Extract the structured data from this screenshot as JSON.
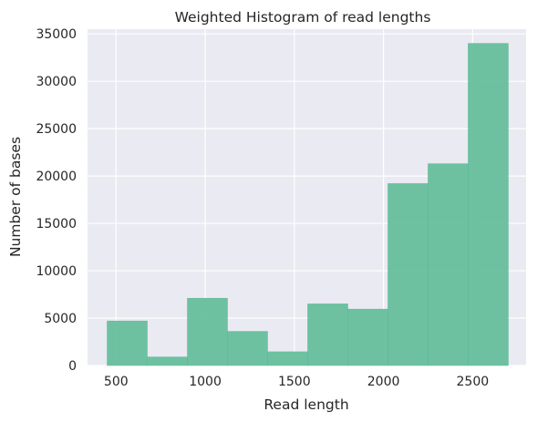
{
  "chart_data": {
    "type": "bar",
    "title": "Weighted Histogram of read lengths",
    "xlabel": "Read length",
    "ylabel": "Number of bases",
    "xlim": [
      340,
      2800
    ],
    "ylim": [
      0,
      35500
    ],
    "xticks": [
      500,
      1000,
      1500,
      2000,
      2500
    ],
    "yticks": [
      0,
      5000,
      10000,
      15000,
      20000,
      25000,
      30000,
      35000
    ],
    "grid": true,
    "bar_color": "#66BF9C",
    "bins": [
      {
        "x0": 450,
        "x1": 675,
        "value": 4700
      },
      {
        "x0": 675,
        "x1": 900,
        "value": 900
      },
      {
        "x0": 900,
        "x1": 1125,
        "value": 7100
      },
      {
        "x0": 1125,
        "x1": 1350,
        "value": 3600
      },
      {
        "x0": 1350,
        "x1": 1575,
        "value": 1450
      },
      {
        "x0": 1575,
        "x1": 1800,
        "value": 6500
      },
      {
        "x0": 1800,
        "x1": 2025,
        "value": 5950
      },
      {
        "x0": 2025,
        "x1": 2250,
        "value": 19200
      },
      {
        "x0": 2250,
        "x1": 2475,
        "value": 21300
      },
      {
        "x0": 2475,
        "x1": 2700,
        "value": 34000
      }
    ]
  }
}
